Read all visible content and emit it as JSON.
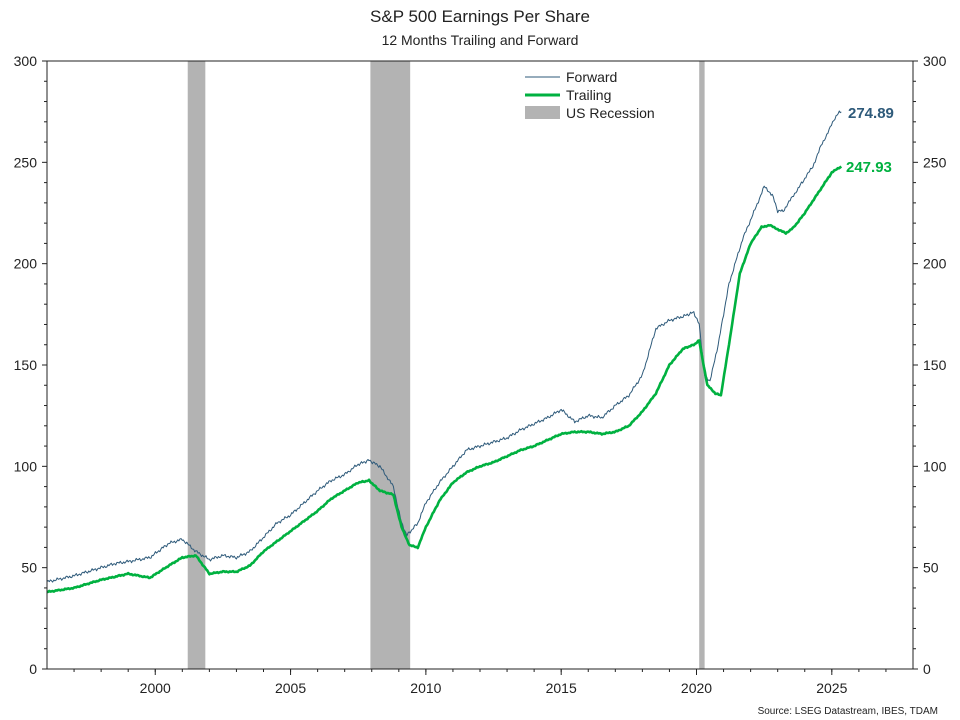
{
  "chart_data": {
    "type": "line",
    "title": "S&P 500 Earnings Per Share",
    "subtitle": "12 Months Trailing and Forward",
    "source": "Source: LSEG Datastream, IBES, TDAM",
    "xlim": [
      1996,
      2028
    ],
    "ylim": [
      0,
      300
    ],
    "x_ticks": [
      2000,
      2005,
      2010,
      2015,
      2020,
      2025
    ],
    "y_ticks": [
      0,
      50,
      100,
      150,
      200,
      250,
      300
    ],
    "legend_position": "top-center",
    "grid": false,
    "colors": {
      "forward": "#2e5a7a",
      "trailing": "#00b140",
      "recession": "#b3b3b3"
    },
    "recessions": [
      {
        "start": 2001.2,
        "end": 2001.85
      },
      {
        "start": 2007.95,
        "end": 2009.42
      },
      {
        "start": 2020.1,
        "end": 2020.3
      }
    ],
    "series": [
      {
        "name": "Forward",
        "end_label": "274.89",
        "x": [
          1996.0,
          1997.0,
          1998.0,
          1998.5,
          1999.0,
          1999.8,
          2000.5,
          2001.0,
          2001.5,
          2002.0,
          2002.5,
          2003.0,
          2003.5,
          2004.0,
          2004.5,
          2005.0,
          2005.5,
          2006.0,
          2006.5,
          2007.0,
          2007.5,
          2007.9,
          2008.3,
          2008.8,
          2009.1,
          2009.3,
          2009.7,
          2010.0,
          2010.5,
          2011.0,
          2011.5,
          2012.0,
          2012.5,
          2013.0,
          2013.5,
          2014.0,
          2014.5,
          2015.0,
          2015.5,
          2016.0,
          2016.5,
          2017.0,
          2017.5,
          2018.0,
          2018.5,
          2019.0,
          2019.5,
          2019.9,
          2020.1,
          2020.3,
          2020.5,
          2020.8,
          2021.2,
          2021.7,
          2022.2,
          2022.5,
          2022.8,
          2023.0,
          2023.2,
          2023.5,
          2023.8,
          2024.0,
          2024.3,
          2024.6,
          2024.9,
          2025.2,
          2025.35
        ],
        "y": [
          43,
          46,
          50,
          52,
          53,
          55,
          62,
          64,
          58,
          54,
          56,
          55,
          58,
          65,
          72,
          76,
          82,
          88,
          93,
          96,
          101,
          103,
          100,
          90,
          72,
          66,
          72,
          82,
          92,
          100,
          108,
          110,
          112,
          114,
          118,
          121,
          124,
          128,
          122,
          125,
          124,
          130,
          135,
          145,
          168,
          172,
          174,
          176,
          170,
          145,
          142,
          160,
          190,
          212,
          228,
          238,
          234,
          226,
          226,
          232,
          238,
          242,
          248,
          258,
          266,
          274,
          274.89
        ]
      },
      {
        "name": "Trailing",
        "end_label": "247.93",
        "x": [
          1996.0,
          1997.0,
          1998.0,
          1999.0,
          1999.8,
          2000.5,
          2001.0,
          2001.5,
          2002.0,
          2002.5,
          2003.0,
          2003.5,
          2004.0,
          2004.5,
          2005.0,
          2005.5,
          2006.0,
          2006.5,
          2007.0,
          2007.5,
          2007.9,
          2008.3,
          2008.8,
          2009.1,
          2009.4,
          2009.7,
          2010.0,
          2010.5,
          2011.0,
          2011.5,
          2012.0,
          2012.5,
          2013.0,
          2013.5,
          2014.0,
          2014.5,
          2015.0,
          2015.5,
          2016.0,
          2016.5,
          2017.0,
          2017.5,
          2018.0,
          2018.5,
          2019.0,
          2019.5,
          2019.9,
          2020.1,
          2020.4,
          2020.7,
          2020.9,
          2021.2,
          2021.6,
          2022.0,
          2022.4,
          2022.7,
          2023.0,
          2023.3,
          2023.6,
          2024.0,
          2024.5,
          2025.0,
          2025.35
        ],
        "y": [
          38,
          40,
          44,
          47,
          45,
          51,
          55,
          56,
          47,
          48,
          48,
          51,
          58,
          63,
          68,
          73,
          78,
          84,
          88,
          92,
          93,
          88,
          86,
          70,
          61,
          60,
          70,
          83,
          92,
          97,
          100,
          102,
          105,
          108,
          110,
          113,
          116,
          117,
          117,
          116,
          117,
          120,
          127,
          136,
          150,
          158,
          160,
          162,
          140,
          136,
          135,
          160,
          195,
          210,
          218,
          219,
          217,
          215,
          218,
          225,
          235,
          245,
          247.93
        ]
      }
    ]
  }
}
